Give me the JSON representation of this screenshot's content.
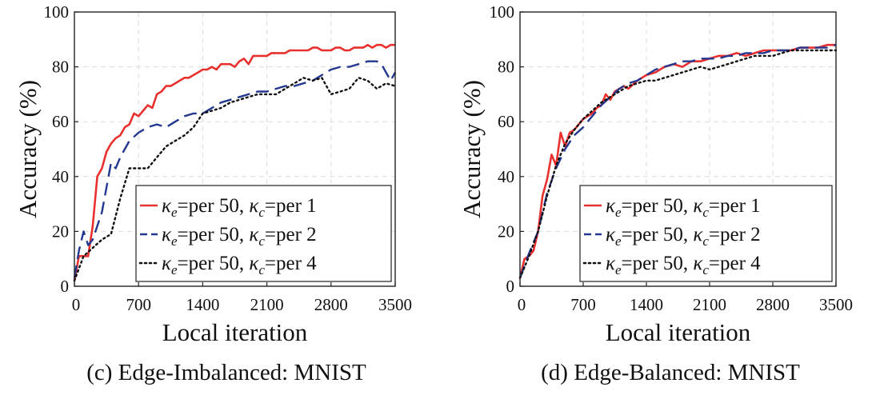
{
  "chart_data": [
    {
      "type": "line",
      "caption": "(c) Edge-Imbalanced: MNIST",
      "xlabel": "Local iteration",
      "ylabel": "Accuracy (%)",
      "xlim": [
        0,
        3500
      ],
      "ylim": [
        0,
        100
      ],
      "xticks": [
        0,
        700,
        1400,
        2100,
        2800,
        3500
      ],
      "yticks": [
        0,
        20,
        40,
        60,
        80,
        100
      ],
      "grid": true,
      "legend_position": "bottom-right",
      "series": [
        {
          "name_parts": {
            "k1": "κ",
            "s1": "e",
            "mid": "=per 50, ",
            "k2": "κ",
            "s2": "c",
            "end": "=per 1"
          },
          "color": "#e8312f",
          "dash": "solid",
          "x": [
            0,
            50,
            100,
            150,
            200,
            250,
            300,
            350,
            400,
            450,
            500,
            550,
            600,
            650,
            700,
            750,
            800,
            850,
            900,
            950,
            1000,
            1050,
            1100,
            1150,
            1200,
            1250,
            1300,
            1350,
            1400,
            1450,
            1500,
            1550,
            1600,
            1650,
            1700,
            1750,
            1800,
            1850,
            1900,
            1950,
            2000,
            2050,
            2100,
            2150,
            2200,
            2250,
            2300,
            2350,
            2400,
            2450,
            2500,
            2550,
            2600,
            2650,
            2700,
            2750,
            2800,
            2850,
            2900,
            2950,
            3000,
            3050,
            3100,
            3150,
            3200,
            3250,
            3300,
            3350,
            3400,
            3450,
            3500
          ],
          "y": [
            2,
            11,
            11,
            11,
            22,
            40,
            43,
            49,
            52,
            54,
            55,
            58,
            59,
            63,
            62,
            64,
            66,
            65,
            70,
            71,
            73,
            73,
            74,
            75,
            76,
            76,
            77,
            78,
            79,
            79,
            80,
            79,
            81,
            81,
            81,
            80,
            82,
            83,
            81,
            84,
            84,
            84,
            84,
            85,
            85,
            85,
            85,
            86,
            86,
            86,
            86,
            86,
            87,
            87,
            86,
            86,
            86,
            87,
            87,
            86,
            86,
            87,
            87,
            87,
            88,
            87,
            88,
            88,
            87,
            88,
            88
          ]
        },
        {
          "name_parts": {
            "k1": "κ",
            "s1": "e",
            "mid": "=per 50, ",
            "k2": "κ",
            "s2": "c",
            "end": "=per 2"
          },
          "color": "#24388f",
          "dash": "dashed",
          "x": [
            0,
            50,
            100,
            150,
            200,
            300,
            350,
            400,
            450,
            500,
            600,
            700,
            800,
            900,
            1000,
            1100,
            1200,
            1300,
            1400,
            1500,
            1600,
            1700,
            1800,
            1900,
            2000,
            2100,
            2200,
            2300,
            2400,
            2500,
            2600,
            2700,
            2800,
            2900,
            3000,
            3100,
            3200,
            3300,
            3350,
            3400,
            3450,
            3500
          ],
          "y": [
            3,
            13,
            20,
            15,
            17,
            27,
            36,
            45,
            43,
            47,
            53,
            56,
            58,
            59,
            58,
            60,
            62,
            63,
            63,
            65,
            67,
            68,
            69,
            70,
            71,
            71,
            72,
            73,
            73,
            74,
            75,
            77,
            79,
            80,
            80,
            81,
            82,
            82,
            81,
            78,
            75,
            78
          ]
        },
        {
          "name_parts": {
            "k1": "κ",
            "s1": "e",
            "mid": "=per 50, ",
            "k2": "κ",
            "s2": "c",
            "end": "=per 4"
          },
          "color": "#111111",
          "dash": "dotted",
          "x": [
            0,
            100,
            200,
            300,
            400,
            500,
            600,
            700,
            800,
            900,
            1000,
            1100,
            1200,
            1300,
            1400,
            1500,
            1600,
            1700,
            1800,
            1900,
            2000,
            2100,
            2200,
            2300,
            2400,
            2500,
            2600,
            2700,
            2800,
            2900,
            3000,
            3100,
            3200,
            3300,
            3400,
            3500
          ],
          "y": [
            2,
            11,
            14,
            17,
            19,
            32,
            43,
            43,
            43,
            47,
            51,
            53,
            55,
            58,
            63,
            64,
            65,
            67,
            68,
            69,
            70,
            70,
            70,
            72,
            74,
            76,
            75,
            76,
            70,
            71,
            72,
            76,
            75,
            72,
            74,
            73
          ]
        }
      ]
    },
    {
      "type": "line",
      "caption": "(d) Edge-Balanced: MNIST",
      "xlabel": "Local iteration",
      "ylabel": "Accuracy (%)",
      "xlim": [
        0,
        3500
      ],
      "ylim": [
        0,
        100
      ],
      "xticks": [
        0,
        700,
        1400,
        2100,
        2800,
        3500
      ],
      "yticks": [
        0,
        20,
        40,
        60,
        80,
        100
      ],
      "grid": true,
      "legend_position": "bottom-right",
      "series": [
        {
          "name_parts": {
            "k1": "κ",
            "s1": "e",
            "mid": "=per 50, ",
            "k2": "κ",
            "s2": "c",
            "end": "=per 1"
          },
          "color": "#e8312f",
          "dash": "solid",
          "x": [
            0,
            50,
            100,
            150,
            200,
            250,
            300,
            350,
            400,
            450,
            500,
            550,
            600,
            650,
            700,
            750,
            800,
            850,
            900,
            950,
            1000,
            1050,
            1100,
            1150,
            1200,
            1300,
            1400,
            1500,
            1600,
            1700,
            1800,
            1900,
            2000,
            2100,
            2200,
            2300,
            2400,
            2500,
            2600,
            2700,
            2800,
            2900,
            3000,
            3100,
            3200,
            3300,
            3400,
            3500
          ],
          "y": [
            3,
            10,
            11,
            13,
            20,
            33,
            39,
            48,
            44,
            56,
            51,
            56,
            57,
            59,
            61,
            62,
            63,
            65,
            66,
            70,
            68,
            71,
            72,
            73,
            72,
            75,
            77,
            78,
            80,
            81,
            80,
            82,
            82,
            83,
            84,
            84,
            85,
            84,
            85,
            86,
            86,
            86,
            86,
            87,
            87,
            87,
            88,
            88
          ]
        },
        {
          "name_parts": {
            "k1": "κ",
            "s1": "e",
            "mid": "=per 50, ",
            "k2": "κ",
            "s2": "c",
            "end": "=per 2"
          },
          "color": "#24388f",
          "dash": "dashed",
          "x": [
            0,
            100,
            200,
            300,
            400,
            500,
            600,
            700,
            800,
            900,
            1000,
            1100,
            1200,
            1300,
            1400,
            1500,
            1600,
            1700,
            1800,
            1900,
            2000,
            2100,
            2200,
            2300,
            2400,
            2500,
            2600,
            2700,
            2800,
            2900,
            3000,
            3100,
            3200,
            3300,
            3400,
            3500
          ],
          "y": [
            3,
            12,
            20,
            34,
            43,
            50,
            55,
            58,
            62,
            66,
            69,
            72,
            74,
            75,
            77,
            79,
            80,
            81,
            82,
            82,
            83,
            83,
            83,
            84,
            84,
            85,
            85,
            85,
            86,
            86,
            86,
            87,
            87,
            87,
            87,
            88
          ]
        },
        {
          "name_parts": {
            "k1": "κ",
            "s1": "e",
            "mid": "=per 50, ",
            "k2": "κ",
            "s2": "c",
            "end": "=per 4"
          },
          "color": "#111111",
          "dash": "dotted",
          "x": [
            0,
            100,
            200,
            300,
            400,
            500,
            600,
            700,
            800,
            900,
            1000,
            1100,
            1200,
            1300,
            1400,
            1500,
            1600,
            1700,
            1800,
            1900,
            2000,
            2100,
            2200,
            2300,
            2400,
            2500,
            2600,
            2700,
            2800,
            2900,
            3000,
            3100,
            3200,
            3300,
            3400,
            3500
          ],
          "y": [
            3,
            11,
            20,
            33,
            44,
            52,
            57,
            61,
            64,
            67,
            69,
            71,
            73,
            74,
            75,
            75,
            76,
            77,
            78,
            79,
            80,
            79,
            80,
            81,
            82,
            83,
            84,
            84,
            84,
            85,
            86,
            86,
            86,
            86,
            86,
            86
          ]
        }
      ]
    }
  ]
}
